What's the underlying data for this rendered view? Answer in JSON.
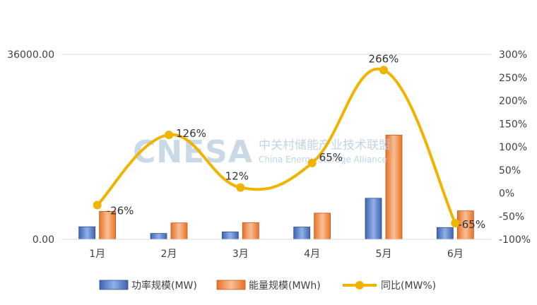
{
  "chart_data": {
    "type": "bar",
    "categories": [
      "1月",
      "2月",
      "3月",
      "4月",
      "5月",
      "6月"
    ],
    "series": [
      {
        "name": "功率规模(MW)",
        "kind": "bar",
        "axis": "left",
        "color": "#4472c4",
        "values": [
          2450,
          1150,
          1450,
          2400,
          8000,
          2300
        ]
      },
      {
        "name": "能量规模(MWh)",
        "kind": "bar",
        "axis": "left",
        "color": "#ed7d31",
        "values": [
          5450,
          3200,
          3250,
          5100,
          20300,
          5550
        ]
      },
      {
        "name": "同比(MW%)",
        "kind": "line",
        "axis": "right",
        "color": "#f0b400",
        "values": [
          -26,
          126,
          12,
          65,
          266,
          -65
        ],
        "labels": [
          "-26%",
          "126%",
          "12%",
          "65%",
          "266%",
          "-65%"
        ]
      }
    ],
    "y_left": {
      "min": 0,
      "max": 36000,
      "ticks": [
        "0.00",
        "36000.00"
      ]
    },
    "y_right": {
      "min": -100,
      "max": 300,
      "step": 50,
      "ticks": [
        "-100%",
        "-50%",
        "0%",
        "50%",
        "100%",
        "150%",
        "200%",
        "250%",
        "300%"
      ]
    },
    "grid": true,
    "legend_position": "bottom",
    "title": "",
    "xlabel": "",
    "ylabel": ""
  },
  "watermark": {
    "brand": "CNESA",
    "cn": "中关村储能产业技术联盟",
    "en": "China Energy Storage Alliance"
  }
}
